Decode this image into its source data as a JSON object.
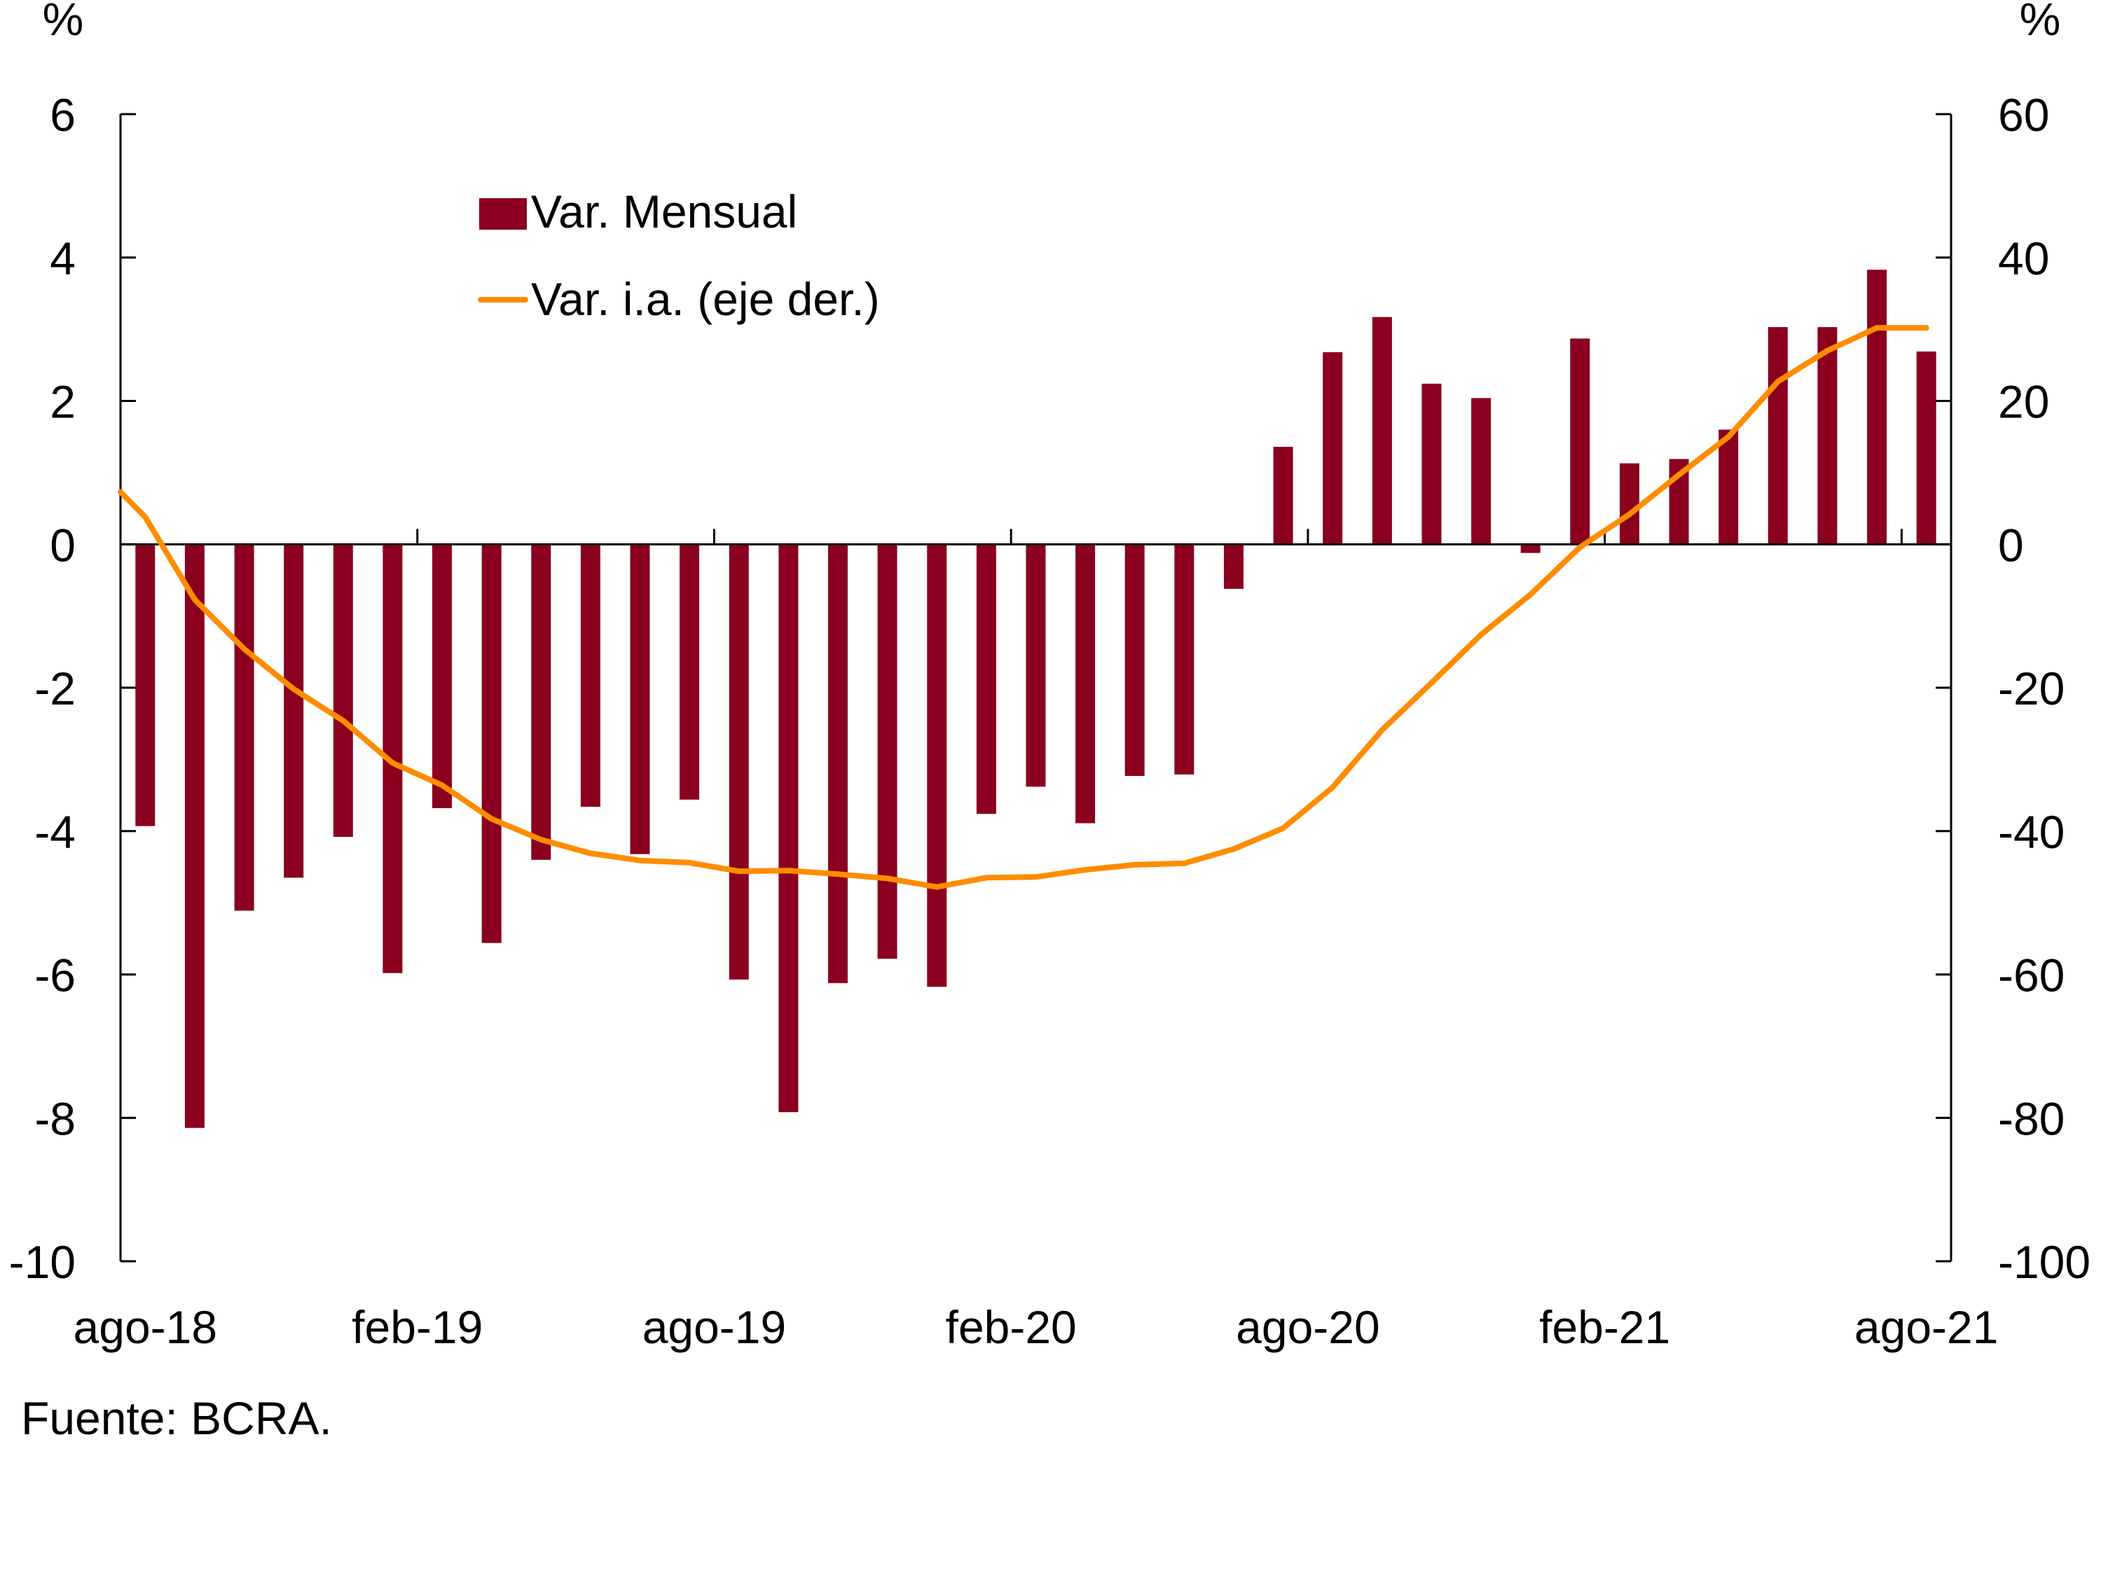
{
  "chart_data": {
    "type": "bar+line",
    "title": "",
    "categories": [
      "ago-18",
      "sep-18",
      "oct-18",
      "nov-18",
      "dic-18",
      "ene-19",
      "feb-19",
      "mar-19",
      "abr-19",
      "may-19",
      "jun-19",
      "jul-19",
      "ago-19",
      "sep-19",
      "oct-19",
      "nov-19",
      "dic-19",
      "ene-20",
      "feb-20",
      "mar-20",
      "abr-20",
      "may-20",
      "jun-20",
      "jul-20",
      "ago-20",
      "sep-20",
      "oct-20",
      "nov-20",
      "dic-20",
      "ene-21",
      "feb-21",
      "mar-21",
      "abr-21",
      "may-21",
      "jun-21",
      "jul-21",
      "ago-21"
    ],
    "x_tick_labels": [
      "ago-18",
      "feb-19",
      "ago-19",
      "feb-20",
      "ago-20",
      "feb-21",
      "ago-21"
    ],
    "x_tick_label_indices": [
      0,
      6,
      12,
      18,
      24,
      30,
      36
    ],
    "series": [
      {
        "name": "Var. Mensual",
        "type": "bar",
        "axis": "left",
        "color": "#8B001E",
        "values": [
          -3.93,
          -8.14,
          -5.11,
          -4.65,
          -4.08,
          -5.98,
          -3.68,
          -5.56,
          -4.4,
          -3.66,
          -4.32,
          -3.56,
          -6.07,
          -7.92,
          -6.12,
          -5.78,
          -6.17,
          -3.76,
          -3.38,
          -3.89,
          -3.23,
          -3.21,
          -0.62,
          1.36,
          2.68,
          3.17,
          2.24,
          2.04,
          -0.12,
          2.87,
          1.13,
          1.19,
          1.6,
          3.03,
          3.03,
          3.83,
          2.69
        ]
      },
      {
        "name": "Var. i.a. (eje der.)",
        "type": "line",
        "axis": "right",
        "color": "#FF8C00",
        "start_value_at_left_edge": 7.3,
        "values": [
          3.8,
          -7.7,
          -14.6,
          -20.2,
          -24.6,
          -30.5,
          -33.6,
          -38.3,
          -41.2,
          -43.1,
          -44.1,
          -44.4,
          -45.6,
          -45.5,
          -46.0,
          -46.6,
          -47.8,
          -46.5,
          -46.4,
          -45.4,
          -44.7,
          -44.5,
          -42.5,
          -39.6,
          -33.9,
          -25.9,
          -19.3,
          -12.6,
          -7.0,
          -0.4,
          4.2,
          9.7,
          15.0,
          22.7,
          27.0,
          30.2,
          30.2
        ]
      }
    ],
    "left_axis": {
      "label": "%",
      "ylim": [
        -10,
        6
      ],
      "ticks": [
        6,
        4,
        2,
        0,
        -2,
        -4,
        -6,
        -8,
        -10
      ]
    },
    "right_axis": {
      "label": "%",
      "ylim": [
        -100,
        60
      ],
      "ticks": [
        60,
        40,
        20,
        0,
        -20,
        -40,
        -60,
        -80,
        -100
      ]
    },
    "xlabel": "",
    "grid": false,
    "legend": {
      "placement": "top-left-inside",
      "entries": [
        "Var. Mensual",
        "Var. i.a. (eje der.)"
      ]
    },
    "source": "Fuente: BCRA."
  }
}
